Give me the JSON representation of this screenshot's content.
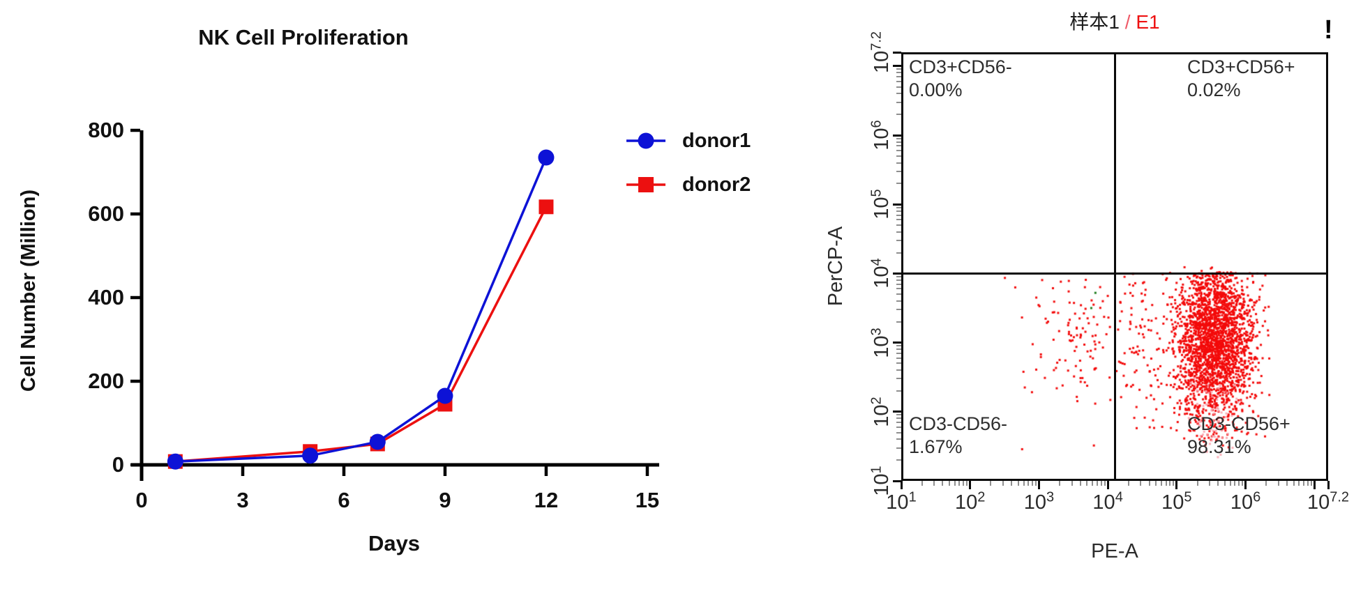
{
  "chart_data": [
    {
      "type": "line",
      "title": "NK Cell Proliferation",
      "xlabel": "Days",
      "ylabel": "Cell Number (Million)",
      "x_ticks": [
        0,
        3,
        6,
        9,
        12,
        15
      ],
      "y_ticks": [
        0,
        200,
        400,
        600,
        800
      ],
      "xlim": [
        0,
        15
      ],
      "ylim": [
        0,
        800
      ],
      "grid": false,
      "legend_position": "right-of-plot-top",
      "x": [
        1,
        5,
        7,
        9,
        12
      ],
      "series": [
        {
          "name": "donor1",
          "marker": "circle",
          "color": "#0d12d6",
          "values": [
            8,
            22,
            55,
            165,
            735
          ]
        },
        {
          "name": "donor2",
          "marker": "square",
          "color": "#ec1010",
          "values": [
            8,
            32,
            50,
            145,
            617
          ]
        }
      ]
    },
    {
      "type": "scatter",
      "subtype": "flow-cytometry-quadrant",
      "title": "样本1 / E1",
      "title_sample": "样本1",
      "title_separator": " / ",
      "title_gate": "E1",
      "alert": "!",
      "xlabel": "PE-A",
      "ylabel": "PerCP-A",
      "x_scale": "log",
      "y_scale": "log",
      "xlim_log": [
        1,
        7.2
      ],
      "ylim_log": [
        1,
        7.2
      ],
      "x_tick_exponents": [
        "1",
        "2",
        "3",
        "4",
        "5",
        "6",
        "7.2"
      ],
      "y_tick_exponents": [
        "1",
        "2",
        "3",
        "4",
        "5",
        "6",
        "7.2"
      ],
      "tick_base": "10",
      "gate_x_log": 4.1,
      "gate_y_log": 4.0,
      "quadrants": [
        {
          "label": "CD3+CD56-",
          "percent": "0.00%",
          "position": "top-left"
        },
        {
          "label": "CD3+CD56+",
          "percent": "0.02%",
          "position": "top-right"
        },
        {
          "label": "CD3-CD56-",
          "percent": "1.67%",
          "position": "bottom-left"
        },
        {
          "label": "CD3-CD56+",
          "percent": "98.31%",
          "position": "bottom-right"
        }
      ],
      "populations": [
        {
          "name": "CD3-CD56+ main cluster",
          "color": "#f30a0a",
          "count": 2400,
          "center_log": [
            5.55,
            3.05
          ],
          "sigma_log": [
            0.28,
            0.6
          ],
          "clip_log": [
            4.85,
            6.35,
            1.45,
            4.02
          ]
        },
        {
          "name": "gate-left tail",
          "color": "#f30a0a",
          "count": 130,
          "center_log": [
            4.55,
            3.0
          ],
          "sigma_log": [
            0.35,
            0.7
          ],
          "clip_log": [
            4.12,
            5.2,
            1.7,
            4.0
          ]
        },
        {
          "name": "CD3-CD56- sparse",
          "color": "#f30a0a",
          "count": 110,
          "center_log": [
            3.6,
            3.2
          ],
          "sigma_log": [
            0.45,
            0.65
          ],
          "clip_log": [
            1.6,
            4.05,
            1.2,
            4.0
          ]
        },
        {
          "name": "faded pink population",
          "color": "rgba(248,158,168,0.85)",
          "count": 70,
          "center_log": [
            5.5,
            1.95
          ],
          "sigma_log": [
            0.18,
            0.3
          ],
          "clip_log": [
            5.0,
            5.9,
            1.2,
            2.6
          ]
        },
        {
          "name": "above-gate events",
          "color": "#f30a0a",
          "count": 4,
          "center_log": [
            5.4,
            4.07
          ],
          "sigma_log": [
            0.15,
            0.03
          ],
          "clip_log": [
            5.0,
            5.9,
            4.03,
            4.12
          ]
        },
        {
          "name": "green events",
          "color": "#1e7d1e",
          "points_log": [
            [
              3.82,
              3.72
            ],
            [
              3.76,
              3.5
            ]
          ]
        }
      ]
    }
  ]
}
